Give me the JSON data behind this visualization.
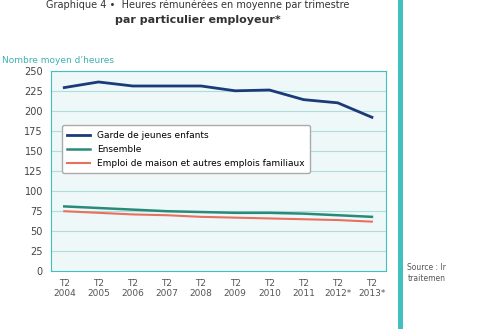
{
  "title_line1": "Graphique 4 •  Heures rémunérées en moyenne par trimestre",
  "title_line2": "par particulier employeur*",
  "ylabel": "Nombre moyen d’heures",
  "xtick_labels": [
    "T2\n2004",
    "T2\n2005",
    "T2\n2006",
    "T2\n2007",
    "T2\n2008",
    "T2\n2009",
    "T2\n2010",
    "T2\n2011",
    "T2\n2012*",
    "T2\n2013*"
  ],
  "ylim": [
    0,
    250
  ],
  "yticks": [
    0,
    25,
    50,
    75,
    100,
    125,
    150,
    175,
    200,
    225,
    250
  ],
  "garde_enfants": [
    229,
    236,
    231,
    231,
    231,
    225,
    226,
    214,
    210,
    192
  ],
  "ensemble": [
    81,
    79,
    77,
    75,
    74,
    73,
    73,
    72,
    70,
    68
  ],
  "emploi_maison": [
    75,
    73,
    71,
    70,
    68,
    67,
    66,
    65,
    64,
    62
  ],
  "color_garde": "#1a3a7a",
  "color_ensemble": "#2a8a7a",
  "color_emploi": "#e87060",
  "color_grid": "#b0dede",
  "color_border": "#40c0c0",
  "color_title": "#333333",
  "color_ylabel": "#40b0b0",
  "legend_labels": [
    "Garde de jeunes enfants",
    "Ensemble",
    "Emploi de maison et autres emplois familiaux"
  ],
  "bg_color": "#ffffff",
  "plot_bg_color": "#eef8f8",
  "right_bar_color": "#40c0c0",
  "source_text": "Source : Ir\ntraitemen"
}
